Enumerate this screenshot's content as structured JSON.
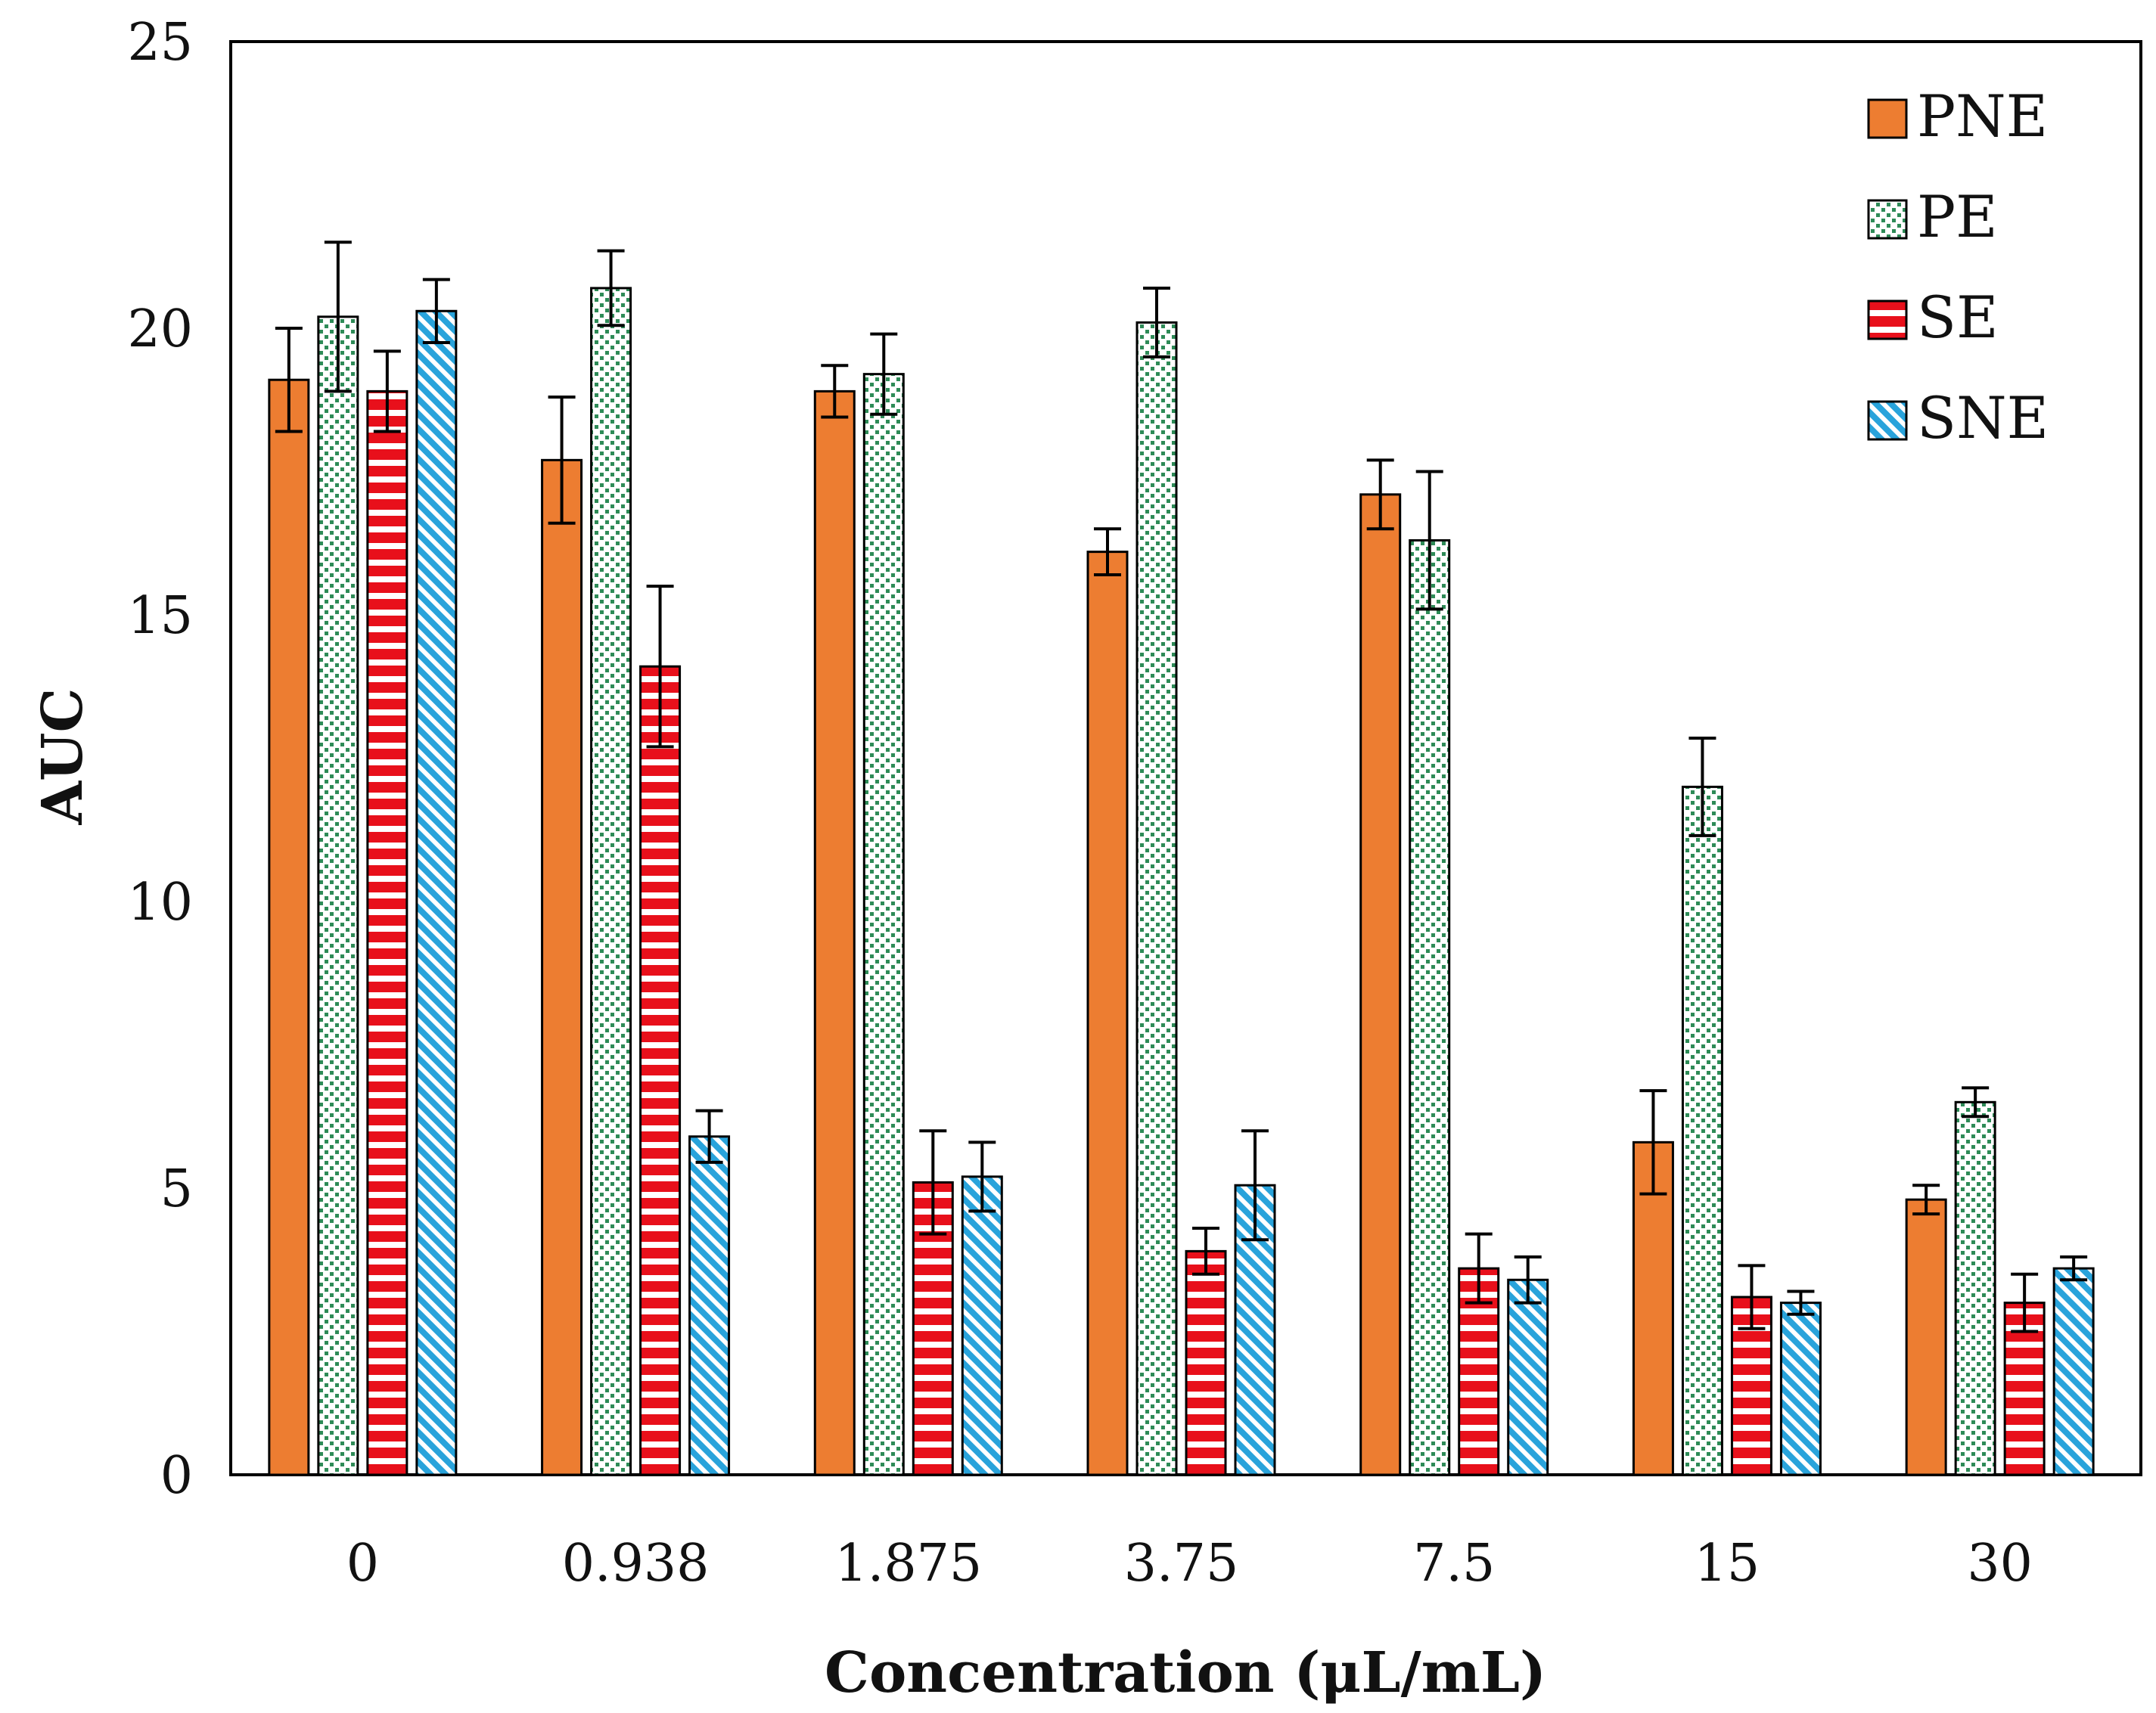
{
  "chart_data": {
    "type": "bar",
    "title": "",
    "xlabel": "Concentration (μL/mL)",
    "ylabel": "AUC",
    "ylim": [
      0,
      25
    ],
    "yticks": [
      0,
      5,
      10,
      15,
      20,
      25
    ],
    "grid": false,
    "legend_position": "top-right",
    "categories": [
      "0",
      "0.938",
      "1.875",
      "3.75",
      "7.5",
      "15",
      "30"
    ],
    "series": [
      {
        "name": "PNE",
        "pattern": "solid",
        "color": "#ED7D31",
        "values": [
          19.1,
          17.7,
          18.9,
          16.1,
          17.1,
          5.8,
          4.8
        ],
        "errors": [
          0.9,
          1.1,
          0.45,
          0.4,
          0.6,
          0.9,
          0.25
        ]
      },
      {
        "name": "PE",
        "pattern": "dots",
        "color": "#2E8B57",
        "values": [
          20.2,
          20.7,
          19.2,
          20.1,
          16.3,
          12.0,
          6.5
        ],
        "errors": [
          1.3,
          0.65,
          0.7,
          0.6,
          1.2,
          0.85,
          0.25
        ]
      },
      {
        "name": "SE",
        "pattern": "horizontal-stripes",
        "color": "#E8101B",
        "values": [
          18.9,
          14.1,
          5.1,
          3.9,
          3.6,
          3.1,
          3.0
        ],
        "errors": [
          0.7,
          1.4,
          0.9,
          0.4,
          0.6,
          0.55,
          0.5
        ]
      },
      {
        "name": "SNE",
        "pattern": "diagonal-hatch",
        "color": "#29A3DB",
        "values": [
          20.3,
          5.9,
          5.2,
          5.05,
          3.4,
          3.0,
          3.6
        ],
        "errors": [
          0.55,
          0.45,
          0.6,
          0.95,
          0.4,
          0.2,
          0.2
        ]
      }
    ]
  }
}
